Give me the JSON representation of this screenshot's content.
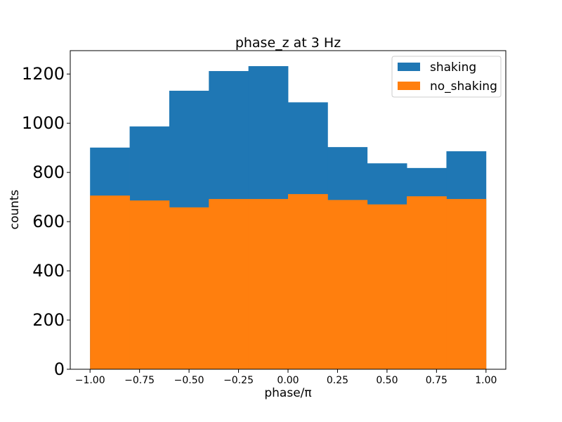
{
  "chart_data": {
    "type": "bar",
    "title": "phase_z at 3 Hz",
    "xlabel": "phase/π",
    "ylabel": "counts",
    "xlim": [
      -1.1,
      1.1
    ],
    "ylim": [
      0,
      1295
    ],
    "xticks": [
      -1.0,
      -0.75,
      -0.5,
      -0.25,
      0.0,
      0.25,
      0.5,
      0.75,
      1.0
    ],
    "xtick_labels": [
      "−1.00",
      "−0.75",
      "−0.50",
      "−0.25",
      "0.00",
      "0.25",
      "0.50",
      "0.75",
      "1.00"
    ],
    "yticks": [
      0,
      200,
      400,
      600,
      800,
      1000,
      1200
    ],
    "ytick_labels": [
      "0",
      "200",
      "400",
      "600",
      "800",
      "1000",
      "1200"
    ],
    "bin_edges": [
      -1.0,
      -0.8,
      -0.6,
      -0.4,
      -0.2,
      0.0,
      0.2,
      0.4,
      0.6,
      0.8,
      1.0
    ],
    "series": [
      {
        "name": "shaking",
        "color": "#1f77b4",
        "values": [
          901,
          987,
          1132,
          1212,
          1232,
          1085,
          903,
          837,
          818,
          886
        ]
      },
      {
        "name": "no_shaking",
        "color": "#ff7f0e",
        "values": [
          706,
          686,
          658,
          692,
          692,
          712,
          688,
          670,
          703,
          692
        ]
      }
    ],
    "grid": false,
    "legend": "top-right"
  }
}
